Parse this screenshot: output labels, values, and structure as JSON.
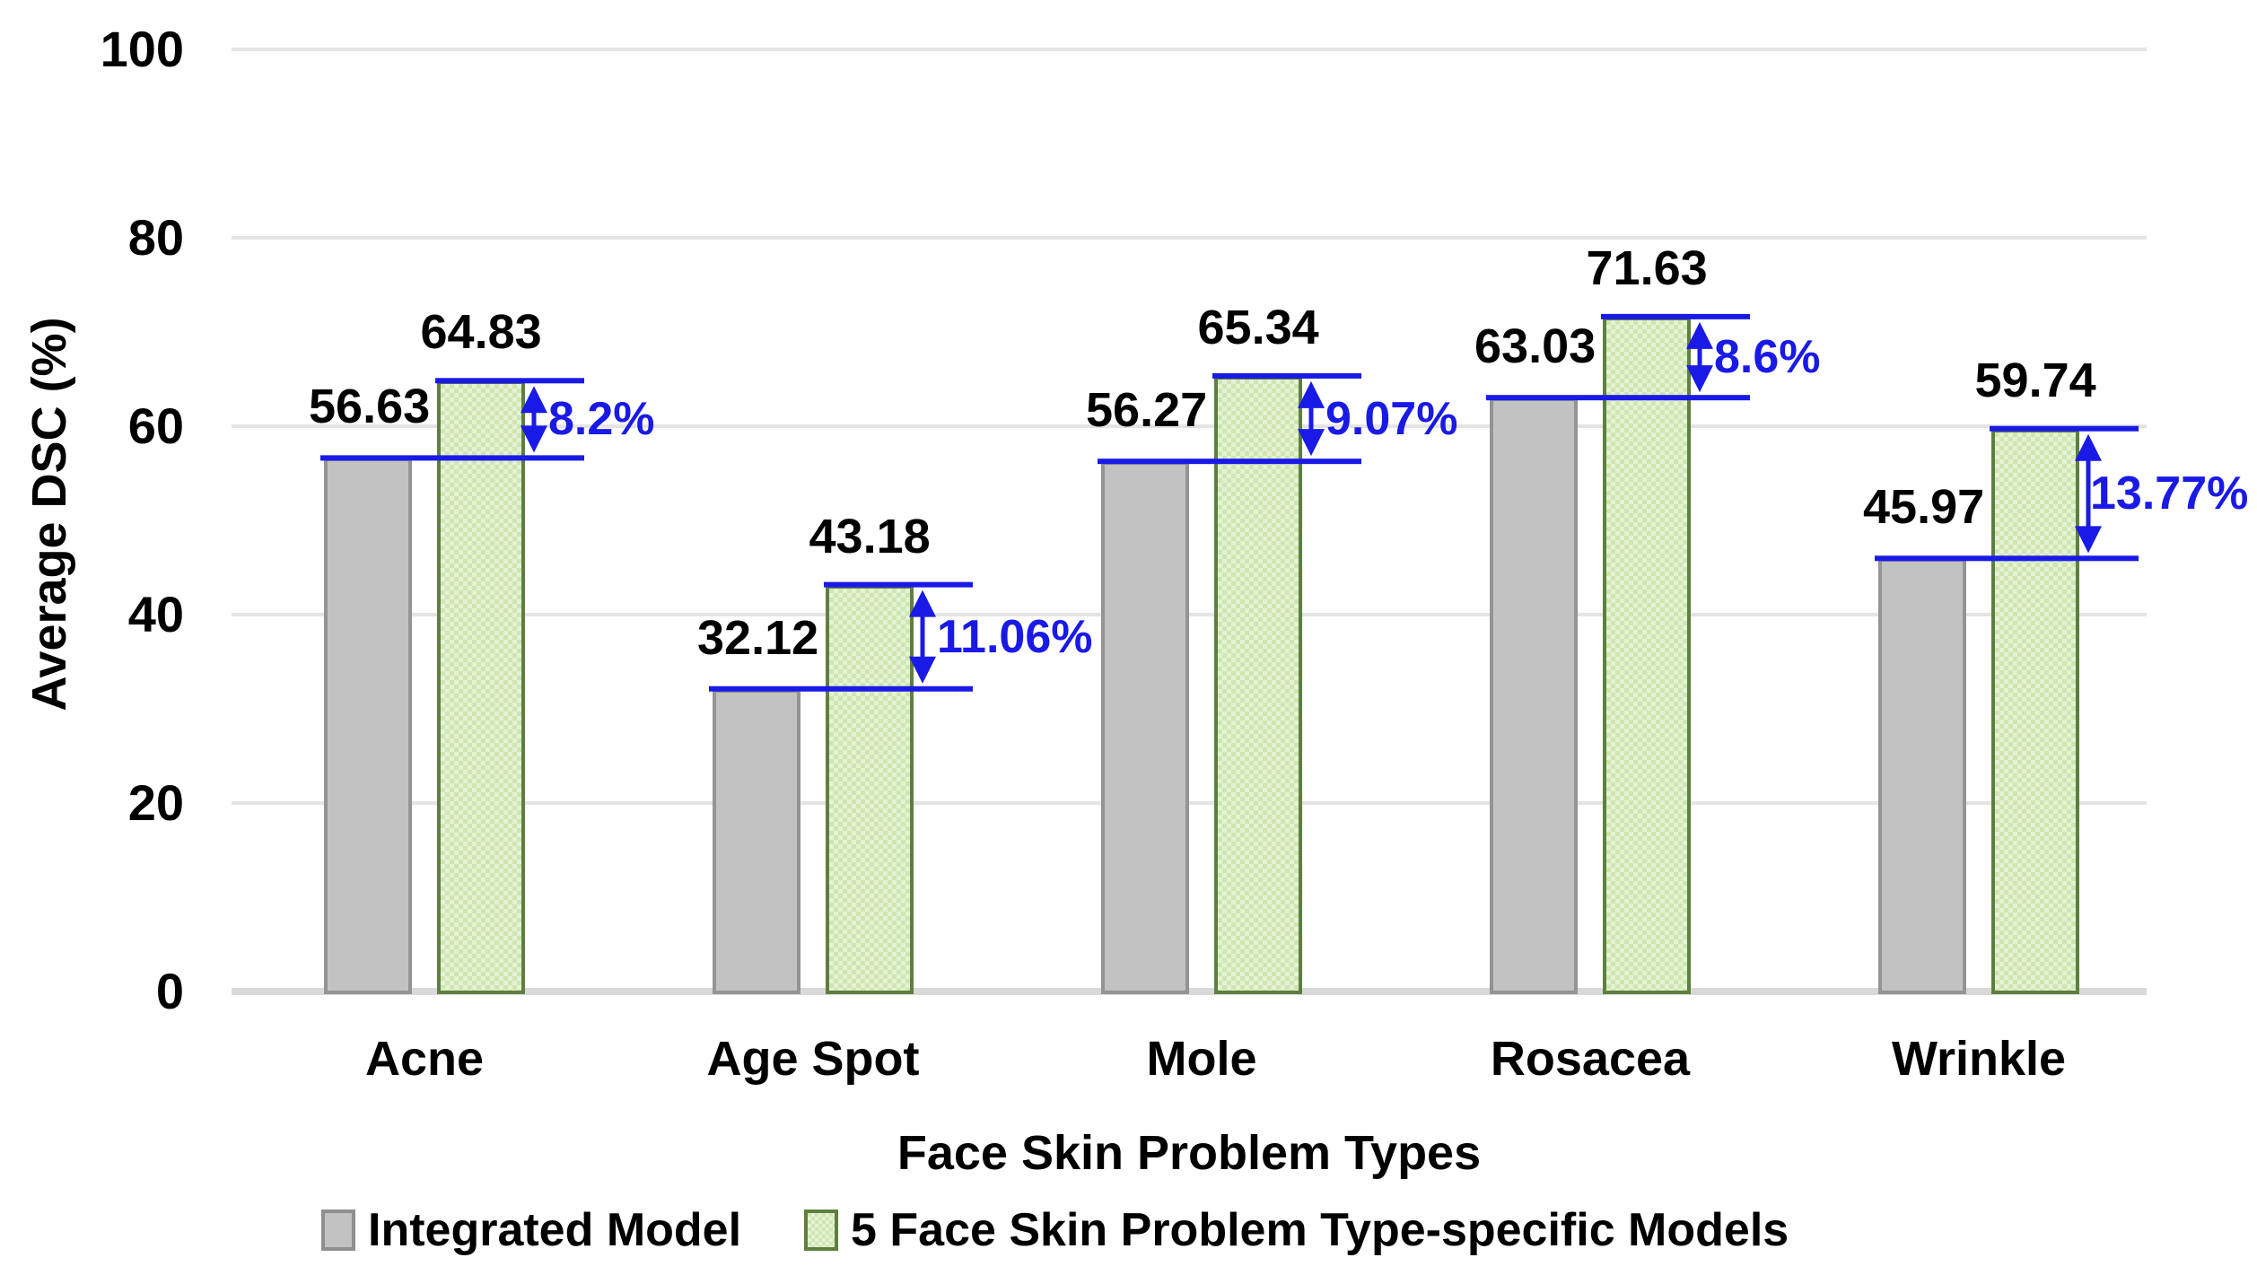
{
  "chart_data": {
    "type": "bar",
    "title": "",
    "categories": [
      "Acne",
      "Age Spot",
      "Mole",
      "Rosacea",
      "Wrinkle"
    ],
    "series": [
      {
        "name": "Integrated Model",
        "values": [
          56.63,
          32.12,
          56.27,
          63.03,
          45.97
        ],
        "color": "#c2c2c2",
        "border_color": "#949494"
      },
      {
        "name": "5 Face Skin Problem Type-specific Models",
        "values": [
          64.83,
          43.18,
          65.34,
          71.63,
          59.74
        ],
        "color": "#d9edc3",
        "border_color": "#5e7f3f",
        "pattern": "checker"
      }
    ],
    "value_labels": {
      "integrated": [
        "56.63",
        "32.12",
        "56.27",
        "63.03",
        "45.97"
      ],
      "type_specific": [
        "64.83",
        "43.18",
        "65.34",
        "71.63",
        "59.74"
      ]
    },
    "difference_labels": [
      "8.2%",
      "11.06%",
      "9.07%",
      "8.6%",
      "13.77%"
    ],
    "annotation_color": "#1a1ae6",
    "xlabel": "Face Skin Problem Types",
    "ylabel": "Average DSC (%)",
    "ylim": [
      0,
      100
    ],
    "yticks": [
      0,
      20,
      40,
      60,
      80,
      100
    ],
    "grid": "horizontal",
    "gridline_color": "#e4e4e4",
    "legend_position": "bottom"
  }
}
